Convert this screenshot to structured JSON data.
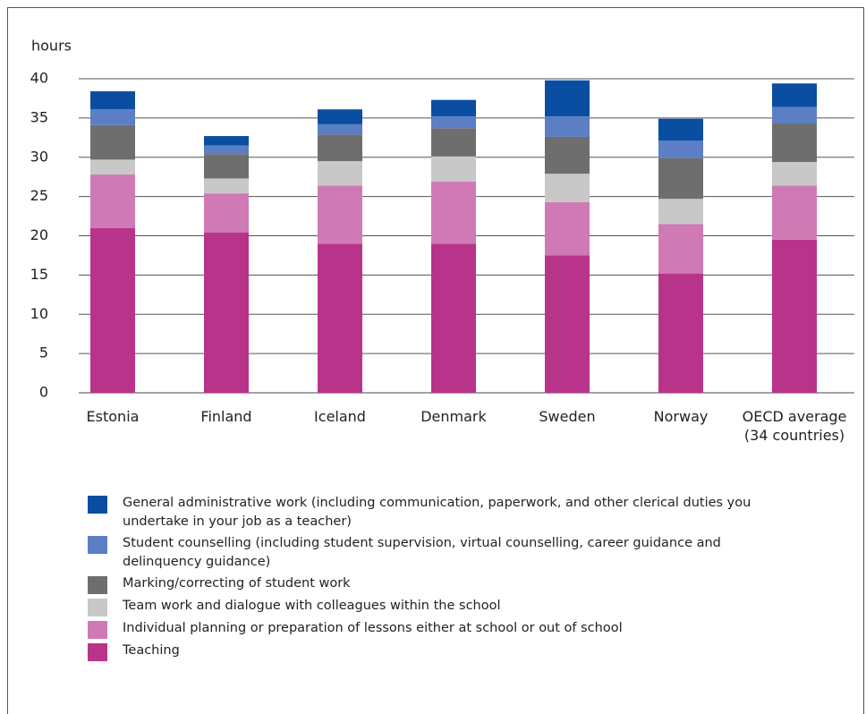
{
  "chart_data": {
    "type": "stacked_bar",
    "y_label": "hours",
    "categories": [
      "Estonia",
      "Finland",
      "Iceland",
      "Denmark",
      "Sweden",
      "Norway",
      "OECD average\n(34 countries)"
    ],
    "series": [
      {
        "name": "Teaching",
        "color": "#b8348a",
        "values": [
          21.0,
          20.4,
          19.0,
          19.0,
          17.5,
          15.2,
          19.5
        ]
      },
      {
        "name": "Individual planning or preparation of lessons either at school or out of school",
        "color": "#cf7ab4",
        "values": [
          6.8,
          5.0,
          7.4,
          7.9,
          6.8,
          6.3,
          6.9
        ]
      },
      {
        "name": "Team work and dialogue with colleagues within the school",
        "color": "#c8c8c8",
        "values": [
          1.9,
          1.9,
          3.1,
          3.2,
          3.6,
          3.2,
          3.0
        ]
      },
      {
        "name": "Marking/correcting of student work",
        "color": "#6e6e6e",
        "values": [
          4.4,
          3.1,
          3.4,
          3.6,
          4.7,
          5.2,
          4.9
        ]
      },
      {
        "name": "Student counselling (including student supervision, virtual counselling, career guidance and delinquency guidance)",
        "color": "#5b7ec4",
        "values": [
          2.0,
          1.1,
          1.3,
          1.5,
          2.6,
          2.2,
          2.1
        ]
      },
      {
        "name": "General administrative work (including communication, paperwork, and other clerical duties you undertake in your job as a teacher)",
        "color": "#0a4ea2",
        "values": [
          2.3,
          1.2,
          1.9,
          2.1,
          4.6,
          2.8,
          3.0
        ]
      }
    ],
    "ylim": [
      0,
      40
    ],
    "yticks": [
      0,
      5,
      10,
      15,
      20,
      25,
      30,
      35,
      40
    ],
    "grid": true
  }
}
